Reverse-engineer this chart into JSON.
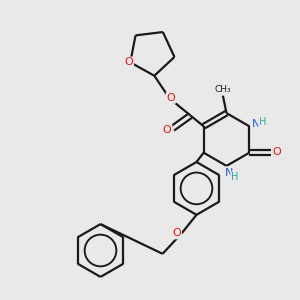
{
  "bg_color": "#e9e9e9",
  "bond_color": "#1a1a1a",
  "N_color": "#2255ee",
  "O_color": "#ee1111",
  "H_color": "#22aaaa",
  "figsize": [
    3.0,
    3.0
  ],
  "dpi": 100,
  "xlim": [
    0,
    10
  ],
  "ylim": [
    0,
    10
  ],
  "lw": 1.6,
  "fs": 7.5
}
